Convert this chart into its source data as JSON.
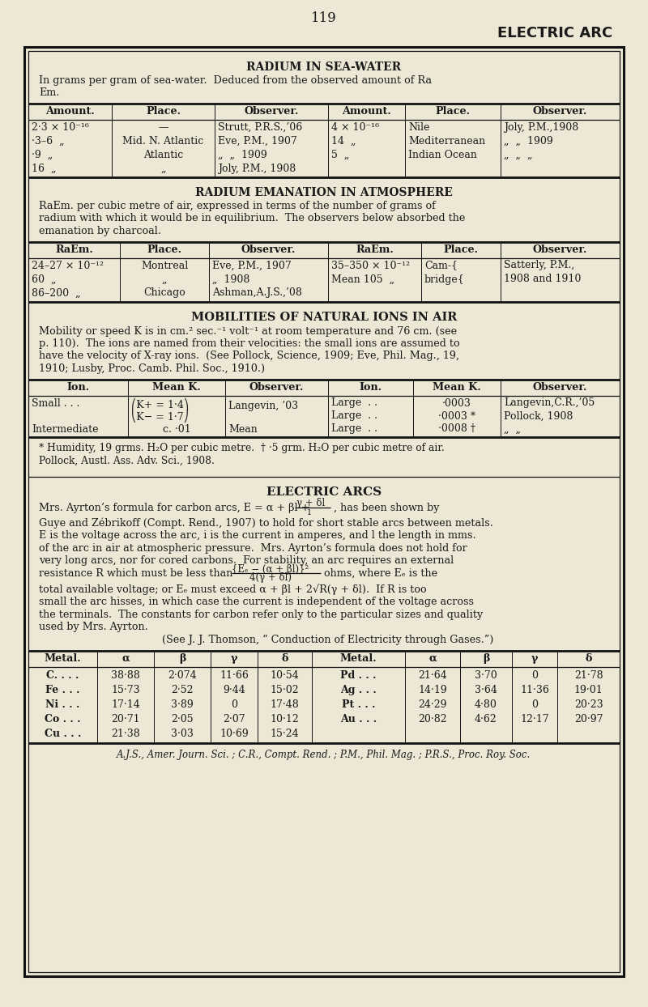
{
  "bg_color": "#ede8d5",
  "text_color": "#1a1a1a",
  "page_number": "119",
  "header_title": "ELECTRIC ARC",
  "section1_title": "RADIUM IN SEA-WATER",
  "section1_intro1": "In grams per gram of sea-water.  Deduced from the observed amount of Ra",
  "section1_intro2": "Em.",
  "s1_headers": [
    "Amount.",
    "Place.",
    "Observer.",
    "Amount.",
    "Place.",
    "Observer."
  ],
  "s1_left": [
    [
      "2·3 × 10⁻¹⁶",
      "—",
      "Strutt, P.R.S.,’06"
    ],
    [
      "·3–6  „",
      "Mid. N. Atlantic",
      "Eve, P.M., 1907"
    ],
    [
      "·9  „",
      "Atlantic",
      "„  „  1909"
    ],
    [
      "16  „",
      "„",
      "Joly, P.M., 1908"
    ]
  ],
  "s1_right": [
    [
      "4 × 10⁻¹⁶",
      "Nile",
      "Joly, P.M.,1908"
    ],
    [
      "14  „",
      "Mediterranean",
      "„  „  1909"
    ],
    [
      "5  „",
      "Indian Ocean",
      "„  „  „"
    ]
  ],
  "section2_title": "RADIUM EMANATION IN ATMOSPHERE",
  "s2_intro": [
    "RaEm. per cubic metre of air, expressed in terms of the number of grams of",
    "radium with which it would be in equilibrium.  The observers below absorbed the",
    "emanation by charcoal."
  ],
  "s2_headers": [
    "RaEm.",
    "Place.",
    "Observer.",
    "RaEm.",
    "Place.",
    "Observer."
  ],
  "s2_left": [
    [
      "24–27 × 10⁻¹²",
      "Montreal",
      "Eve, P.M., 1907"
    ],
    [
      "60  „",
      "„",
      "„  1908"
    ],
    [
      "86–200  „",
      "Chicago",
      "Ashman,A.J.S.,’08"
    ]
  ],
  "s2_right": [
    [
      "35–350 × 10⁻¹²",
      "Cam-{",
      "Satterly, P.M.,"
    ],
    [
      "Mean 105  „",
      "bridge{",
      "1908 and 1910"
    ]
  ],
  "section3_title": "MOBILITIES OF NATURAL IONS IN AIR",
  "s3_intro": [
    "Mobility or speed K is in cm.² sec.⁻¹ volt⁻¹ at room temperature and 76 cm. (see",
    "p. 110).  The ions are named from their velocities: the small ions are assumed to",
    "have the velocity of X-ray ions.  (See Pollock, Science, 1909; Eve, Phil. Mag., 19,",
    "1910; Lusby, Proc. Camb. Phil. Soc., 1910.)"
  ],
  "s3_headers": [
    "Ion.",
    "Mean K.",
    "Observer.",
    "Ion.",
    "Mean K.",
    "Observer."
  ],
  "s3_footnote1": "* Humidity, 19 grms. H₂O per cubic metre.  † ·5 grm. H₂O per cubic metre of air.",
  "s3_footnote2": "Pollock, Austl. Ass. Adv. Sci., 1908.",
  "section4_title": "ELECTRIC ARCS",
  "s4_para1": [
    "Guye and Zébrikoff (Compt. Rend., 1907) to hold for short stable arcs between metals.",
    "E is the voltage across the arc, i is the current in amperes, and l the length in mms.",
    "of the arc in air at atmospheric pressure.  Mrs. Ayrton’s formula does not hold for",
    "very long arcs, nor for cored carbons.  For stability, an arc requires an external"
  ],
  "s4_para2": [
    "total available voltage; or Eₑ must exceed α + βl + 2√R(γ + δl).  If R is too",
    "small the arc hisses, in which case the current is independent of the voltage across",
    "the terminals.  The constants for carbon refer only to the particular sizes and quality",
    "used by Mrs. Ayrton."
  ],
  "s4_para3": "(See J. J. Thomson, “ Conduction of Electricity through Gases.”)",
  "s4_headers": [
    "Metal.",
    "α",
    "β",
    "γ",
    "δ",
    "Metal.",
    "α",
    "β",
    "γ",
    "δ"
  ],
  "s4_rows": [
    [
      "C. . . .",
      "38·88",
      "2·074",
      "11·66",
      "10·54",
      "Pd . . .",
      "21·64",
      "3·70",
      "0",
      "21·78"
    ],
    [
      "Fe . . .",
      "15·73",
      "2·52",
      "9·44",
      "15·02",
      "Ag . . .",
      "14·19",
      "3·64",
      "11·36",
      "19·01"
    ],
    [
      "Ni . . .",
      "17·14",
      "3·89",
      "0",
      "17·48",
      "Pt . . .",
      "24·29",
      "4·80",
      "0",
      "20·23"
    ],
    [
      "Co . . .",
      "20·71",
      "2·05",
      "2·07",
      "10·12",
      "Au . . .",
      "20·82",
      "4·62",
      "12·17",
      "20·97"
    ],
    [
      "Cu . . .",
      "21·38",
      "3·03",
      "10·69",
      "15·24",
      "",
      "",
      "",
      "",
      ""
    ]
  ],
  "s4_footer": "A.J.S., Amer. Journ. Sci. ; C.R., Compt. Rend. ; P.M., Phil. Mag. ; P.R.S., Proc. Roy. Soc."
}
